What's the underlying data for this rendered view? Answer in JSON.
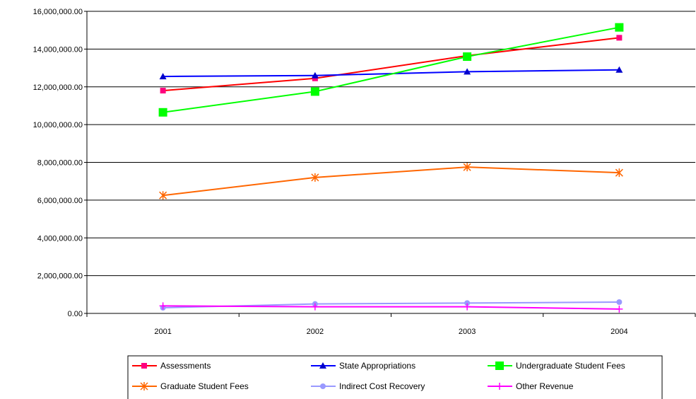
{
  "chart_data": {
    "type": "line",
    "categories": [
      "2001",
      "2002",
      "2003",
      "2004"
    ],
    "ylim": [
      0,
      16000000
    ],
    "yticks": [
      0,
      2000000,
      4000000,
      6000000,
      8000000,
      10000000,
      12000000,
      14000000,
      16000000
    ],
    "ytick_labels": [
      "0.00",
      "2,000,000.00",
      "4,000,000.00",
      "6,000,000.00",
      "8,000,000.00",
      "10,000,000.00",
      "12,000,000.00",
      "14,000,000.00",
      "16,000,000.00"
    ],
    "grid": "horizontal",
    "legend_position": "bottom",
    "series": [
      {
        "name": "Assessments",
        "color": "#ff0000",
        "marker": "square-small",
        "marker_color": "#ff007f",
        "values": [
          11800000,
          12450000,
          13650000,
          14600000
        ]
      },
      {
        "name": "State Appropriations",
        "color": "#0000ff",
        "marker": "triangle",
        "marker_color": "#0000cc",
        "values": [
          12550000,
          12600000,
          12800000,
          12900000
        ]
      },
      {
        "name": "Undergraduate Student Fees",
        "color": "#00ff00",
        "marker": "square-large",
        "marker_color": "#00ff00",
        "values": [
          10650000,
          11750000,
          13600000,
          15150000
        ]
      },
      {
        "name": "Graduate Student Fees",
        "color": "#ff6600",
        "marker": "asterisk",
        "marker_color": "#ff6600",
        "values": [
          6250000,
          7200000,
          7750000,
          7450000
        ]
      },
      {
        "name": "Indirect Cost Recovery",
        "color": "#9999ff",
        "marker": "circle",
        "marker_color": "#9999ff",
        "values": [
          300000,
          500000,
          550000,
          600000
        ]
      },
      {
        "name": "Other Revenue",
        "color": "#ff00ff",
        "marker": "plus",
        "marker_color": "#ff00ff",
        "values": [
          400000,
          350000,
          350000,
          230000
        ]
      }
    ]
  }
}
